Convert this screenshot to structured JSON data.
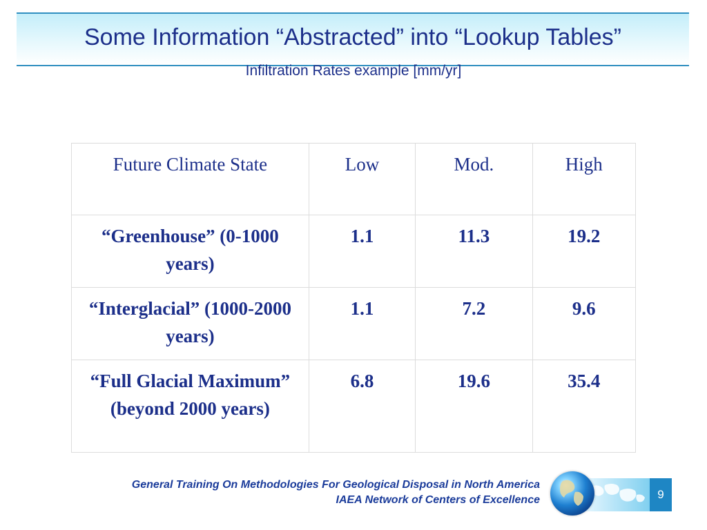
{
  "slide": {
    "title": "Some Information “Abstracted” into “Lookup Tables”",
    "subtitle": "Infiltration Rates example [mm/yr]"
  },
  "table": {
    "headers": [
      "Future Climate State",
      "Low",
      "Mod.",
      "High"
    ],
    "rows": [
      [
        "“Greenhouse” (0-1000 years)",
        "1.1",
        "11.3",
        "19.2"
      ],
      [
        "“Interglacial” (1000-2000 years)",
        "1.1",
        "7.2",
        "9.6"
      ],
      [
        "“Full Glacial Maximum” (beyond 2000 years)",
        "6.8",
        "19.6",
        "35.4"
      ]
    ]
  },
  "footer": {
    "line1": "General Training On Methodologies For Geological Disposal in North America",
    "line2": "IAEA Network of Centers of Excellence",
    "page_number": "9",
    "globe_icon": "globe-icon",
    "map_icon": "world-map-icon"
  },
  "colors": {
    "title": "#1c2f8a",
    "accent_line": "#2f8fc0",
    "page_box": "#1e86c4"
  }
}
